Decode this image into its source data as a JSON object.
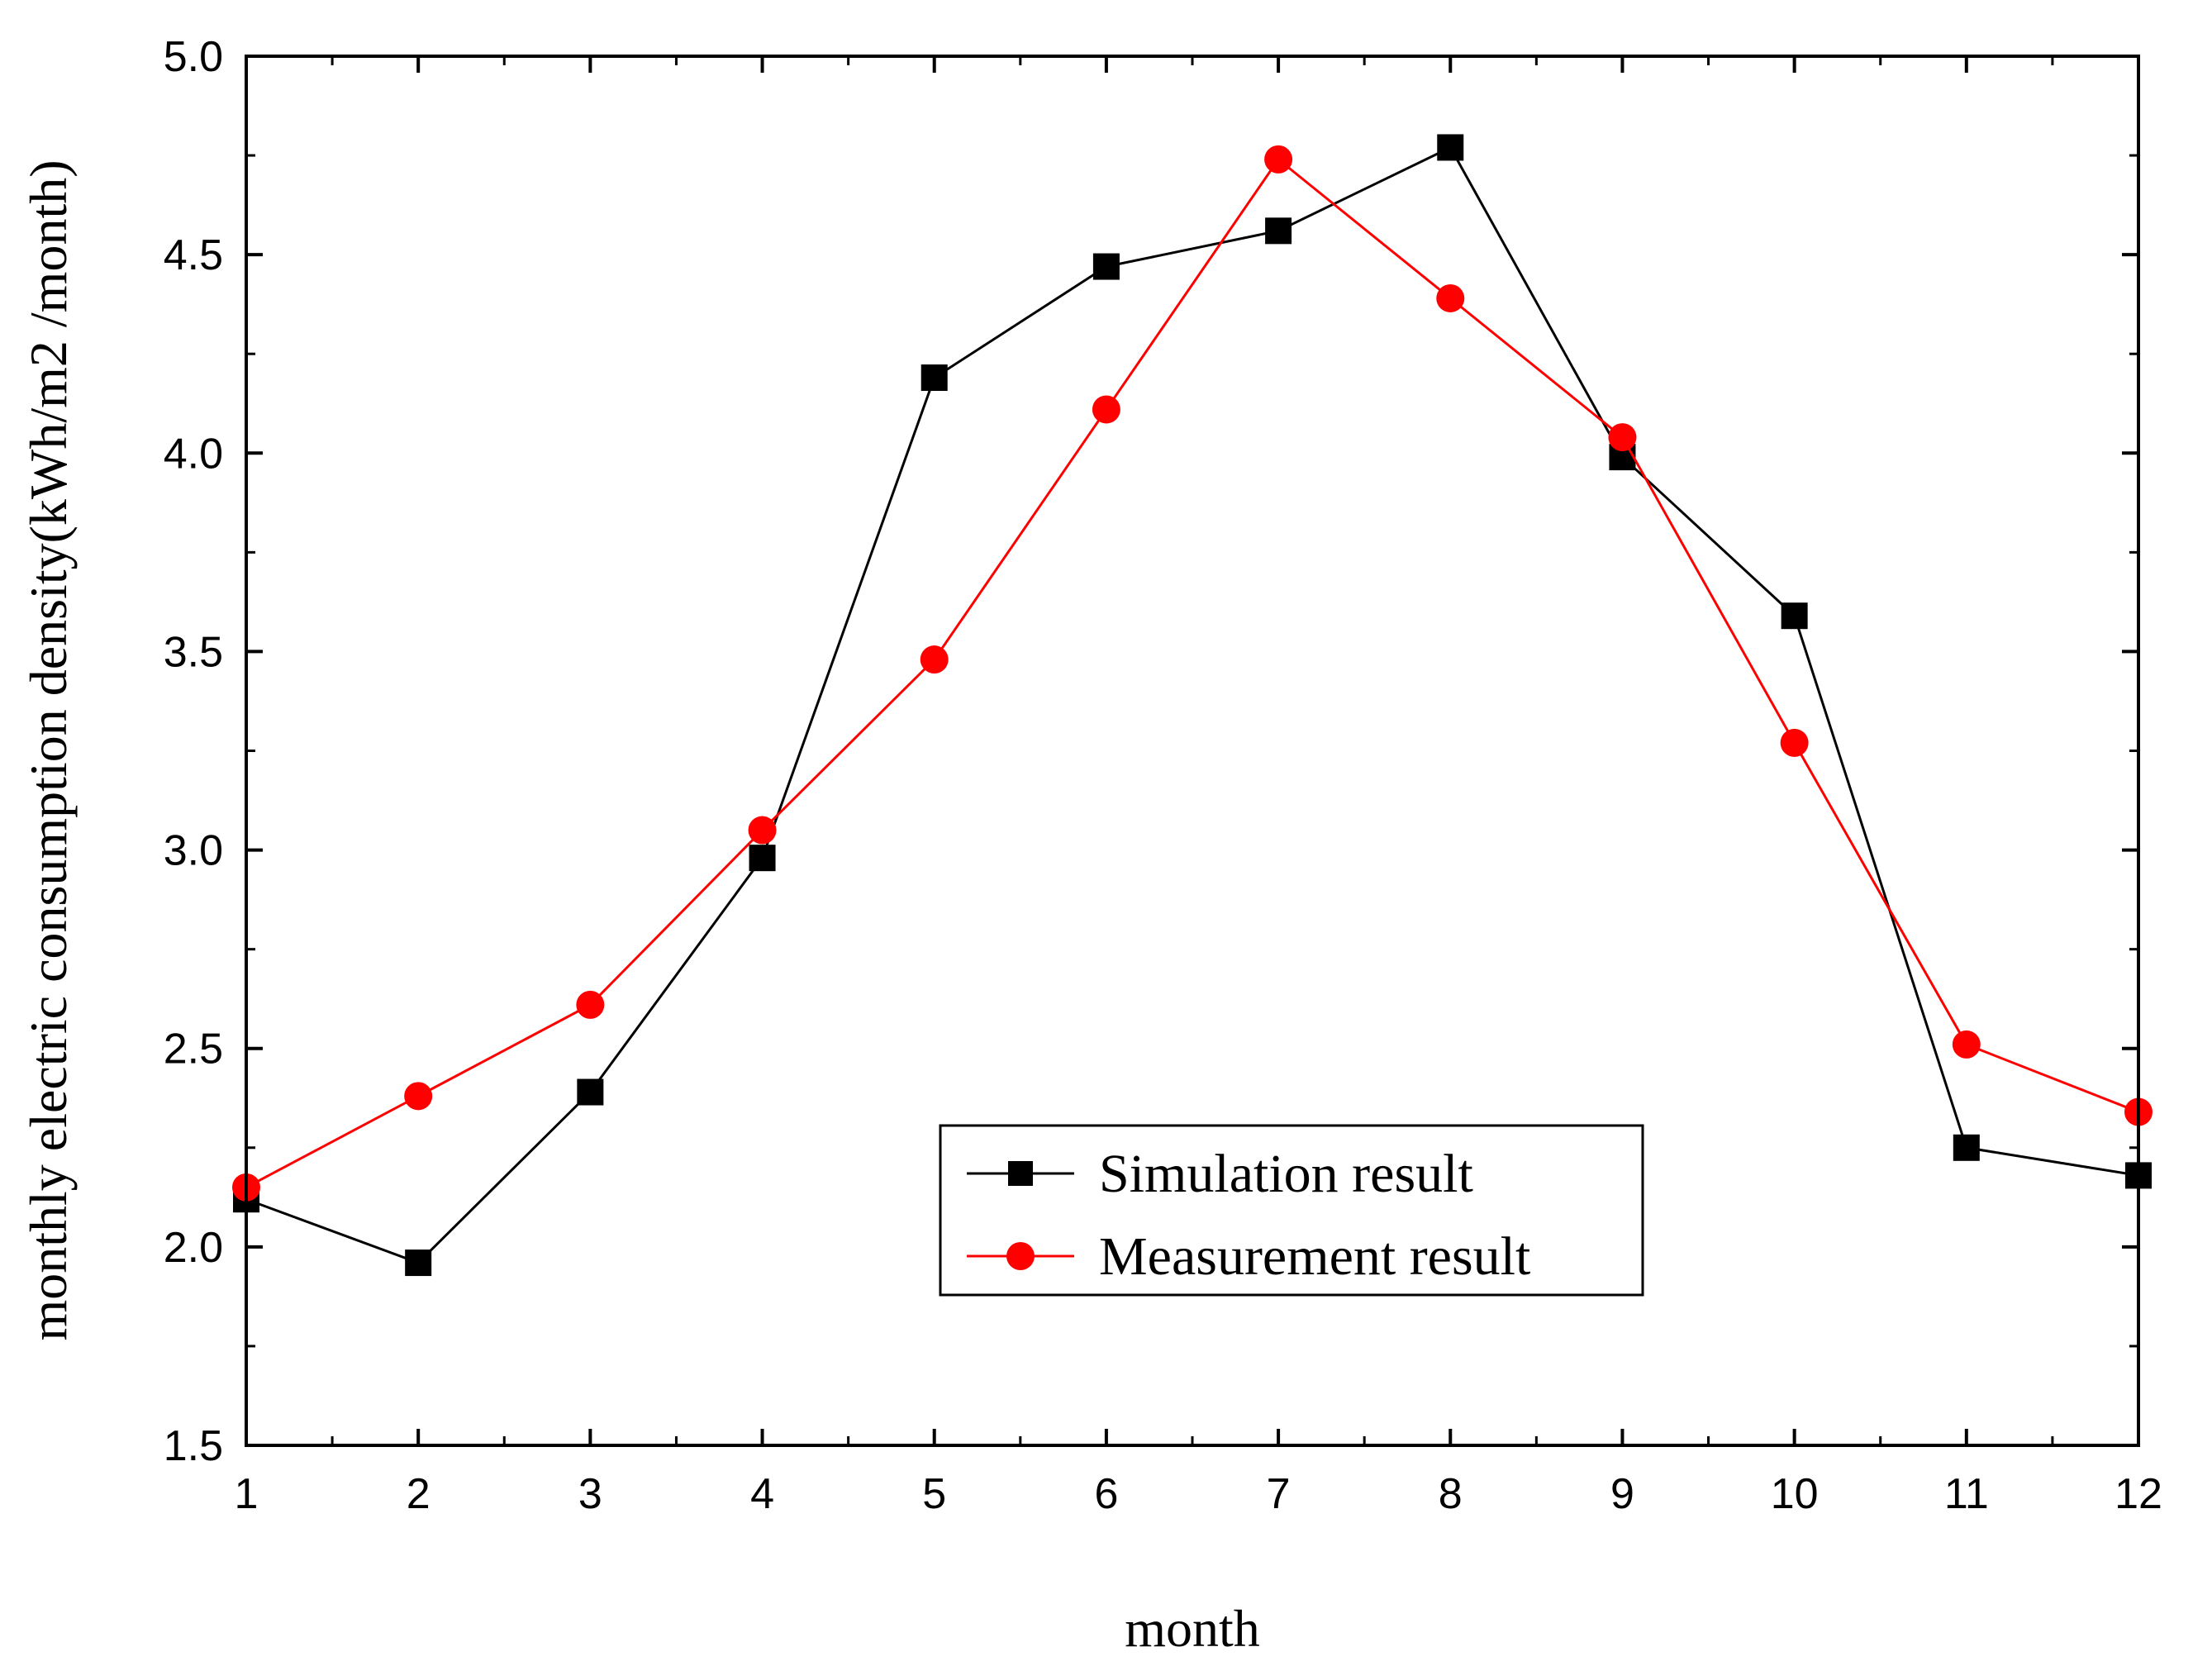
{
  "chart_data": {
    "type": "line",
    "title": "",
    "xlabel": "month",
    "ylabel": "monthly electric consumption density(kWh/m2 /month)",
    "x": [
      1,
      2,
      3,
      4,
      5,
      6,
      7,
      8,
      9,
      10,
      11,
      12
    ],
    "xticks": [
      "1",
      "2",
      "3",
      "4",
      "5",
      "6",
      "7",
      "8",
      "9",
      "10",
      "11",
      "12"
    ],
    "xlim": [
      1,
      12
    ],
    "yticks": [
      "1.5",
      "2.0",
      "2.5",
      "3.0",
      "3.5",
      "4.0",
      "4.5",
      "5.0"
    ],
    "ylim": [
      1.5,
      5.0
    ],
    "grid": false,
    "legend_position": "center-right",
    "series": [
      {
        "name": "Simulation result",
        "color": "#000000",
        "marker": "square",
        "values": [
          2.12,
          1.96,
          2.39,
          2.98,
          4.19,
          4.47,
          4.56,
          4.77,
          3.99,
          3.59,
          2.25,
          2.18
        ]
      },
      {
        "name": "Measurement result",
        "color": "#ff0000",
        "marker": "circle",
        "values": [
          2.15,
          2.38,
          2.61,
          3.05,
          3.48,
          4.11,
          4.74,
          4.39,
          4.04,
          3.27,
          2.51,
          2.34
        ]
      }
    ]
  }
}
